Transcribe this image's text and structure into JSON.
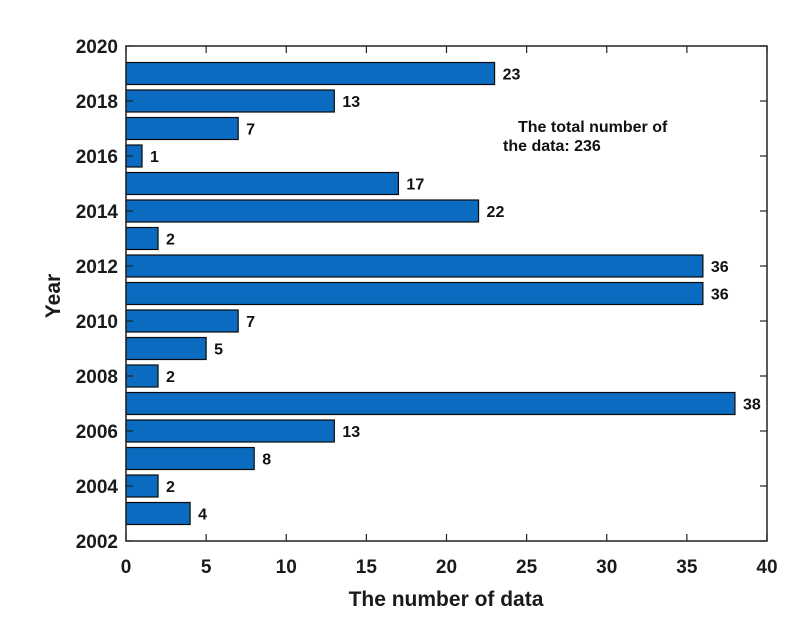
{
  "chart_data": {
    "type": "bar",
    "orientation": "horizontal",
    "xlabel": "The number of data",
    "ylabel": "Year",
    "xlim": [
      0,
      40
    ],
    "ylim": [
      2002,
      2020
    ],
    "x_ticks": [
      0,
      5,
      10,
      15,
      20,
      25,
      30,
      35,
      40
    ],
    "y_ticks": [
      2002,
      2004,
      2006,
      2008,
      2010,
      2012,
      2014,
      2016,
      2018,
      2020
    ],
    "categories": [
      2003,
      2004,
      2005,
      2006,
      2007,
      2008,
      2009,
      2010,
      2011,
      2012,
      2013,
      2014,
      2015,
      2016,
      2017,
      2018,
      2019
    ],
    "values": [
      4,
      2,
      8,
      13,
      38,
      2,
      5,
      7,
      36,
      36,
      2,
      22,
      17,
      1,
      7,
      13,
      23
    ],
    "annotation": [
      "The total number of",
      "the data: 236"
    ],
    "grid": false,
    "bar_color": "#0a6bc1",
    "bar_edge_color": "#0a0a0a"
  }
}
